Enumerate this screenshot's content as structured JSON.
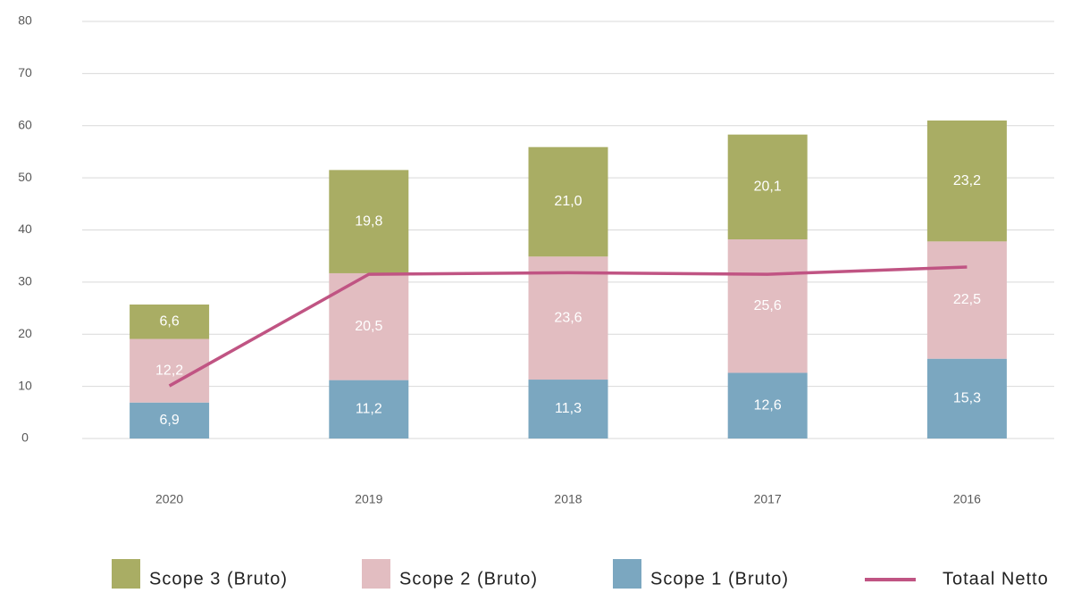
{
  "chart_data": {
    "type": "bar",
    "categories": [
      "2020",
      "2019",
      "2018",
      "2017",
      "2016"
    ],
    "series": [
      {
        "name": "Scope 3 (Bruto)",
        "color": "#a9ad64",
        "values": [
          6.6,
          19.8,
          21.0,
          20.1,
          23.2
        ],
        "value_labels": [
          "6,6",
          "19,8",
          "21,0",
          "20,1",
          "23,2"
        ]
      },
      {
        "name": "Scope 2 (Bruto)",
        "color": "#e2bdc1",
        "values": [
          12.2,
          20.5,
          23.6,
          25.6,
          22.5
        ],
        "value_labels": [
          "12,2",
          "20,5",
          "23,6",
          "25,6",
          "22,5"
        ]
      },
      {
        "name": "Scope 1 (Bruto)",
        "color": "#7ba7c0",
        "values": [
          6.9,
          11.2,
          11.3,
          12.6,
          15.3
        ],
        "value_labels": [
          "6,9",
          "11,2",
          "11,3",
          "12,6",
          "15,3"
        ]
      },
      {
        "name": "Totaal Netto",
        "type": "line",
        "color": "#c05483",
        "values": [
          10.1,
          31.5,
          31.8,
          31.5,
          32.9
        ]
      }
    ],
    "ylim": [
      0,
      80
    ],
    "yticks": [
      0,
      10,
      20,
      30,
      40,
      50,
      60,
      70,
      80
    ],
    "grid": true,
    "legend": "bottom"
  }
}
